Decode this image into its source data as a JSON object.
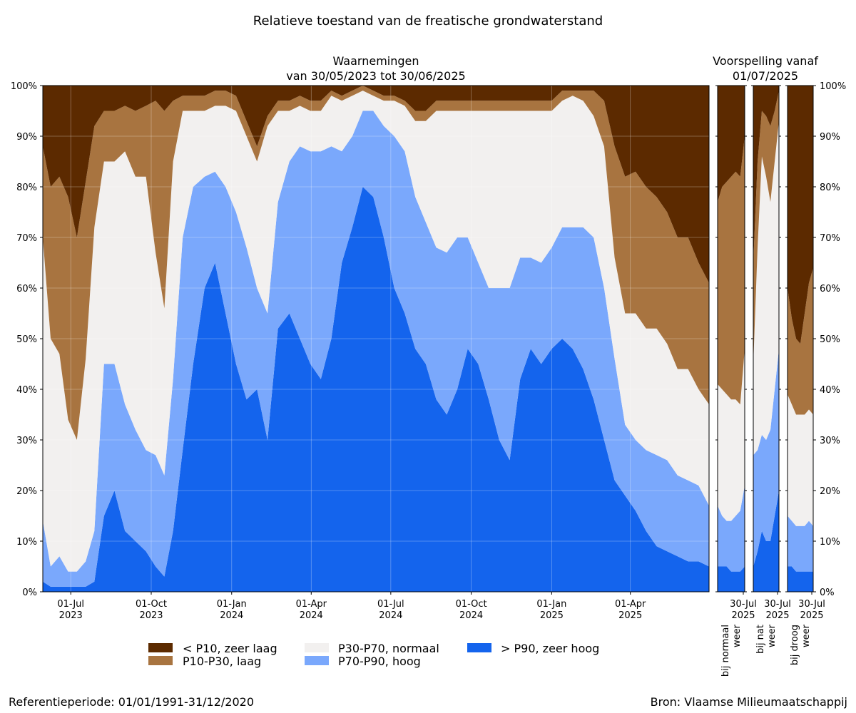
{
  "title": "Relatieve toestand van de freatische grondwaterstand",
  "colors": {
    "zeer_laag": "#5c2a00",
    "laag": "#a87440",
    "normaal": "#f2f0ef",
    "hoog": "#7aa8fc",
    "zeer_hoog": "#1464ed"
  },
  "chart_data": [
    {
      "type": "area",
      "title": "Waarnemingen",
      "subtitle": "van 30/05/2023 tot 30/06/2025",
      "x_range": [
        "2023-05-30",
        "2025-06-30"
      ],
      "xticks": [
        {
          "date": "2023-07-01",
          "line1": "01-Jul",
          "line2": "2023"
        },
        {
          "date": "2023-10-01",
          "line1": "01-Oct",
          "line2": "2023"
        },
        {
          "date": "2024-01-01",
          "line1": "01-Jan",
          "line2": "2024"
        },
        {
          "date": "2024-04-01",
          "line1": "01-Apr",
          "line2": "2024"
        },
        {
          "date": "2024-07-01",
          "line1": "01-Jul",
          "line2": "2024"
        },
        {
          "date": "2024-10-01",
          "line1": "01-Oct",
          "line2": "2024"
        },
        {
          "date": "2025-01-01",
          "line1": "01-Jan",
          "line2": "2025"
        },
        {
          "date": "2025-04-01",
          "line1": "01-Apr",
          "line2": "2025"
        }
      ],
      "yticks": [
        "0%",
        "10%",
        "20%",
        "30%",
        "40%",
        "50%",
        "60%",
        "70%",
        "80%",
        "90%",
        "100%"
      ],
      "ylim": [
        0,
        100
      ],
      "grid": true,
      "stacked": true,
      "x": [
        "2023-05-30",
        "2023-06-08",
        "2023-06-18",
        "2023-06-28",
        "2023-07-08",
        "2023-07-18",
        "2023-07-28",
        "2023-08-08",
        "2023-08-20",
        "2023-09-01",
        "2023-09-13",
        "2023-09-25",
        "2023-10-06",
        "2023-10-16",
        "2023-10-26",
        "2023-11-06",
        "2023-11-18",
        "2023-12-01",
        "2023-12-13",
        "2023-12-25",
        "2024-01-06",
        "2024-01-18",
        "2024-01-30",
        "2024-02-11",
        "2024-02-23",
        "2024-03-07",
        "2024-03-19",
        "2024-03-31",
        "2024-04-12",
        "2024-04-24",
        "2024-05-06",
        "2024-05-18",
        "2024-05-30",
        "2024-06-11",
        "2024-06-23",
        "2024-07-05",
        "2024-07-17",
        "2024-07-29",
        "2024-08-10",
        "2024-08-22",
        "2024-09-03",
        "2024-09-15",
        "2024-09-27",
        "2024-10-09",
        "2024-10-21",
        "2024-11-02",
        "2024-11-14",
        "2024-11-26",
        "2024-12-08",
        "2024-12-20",
        "2025-01-01",
        "2025-01-13",
        "2025-01-25",
        "2025-02-06",
        "2025-02-18",
        "2025-03-02",
        "2025-03-14",
        "2025-03-26",
        "2025-04-07",
        "2025-04-19",
        "2025-05-01",
        "2025-05-13",
        "2025-05-25",
        "2025-06-06",
        "2025-06-18",
        "2025-06-30"
      ],
      "series": [
        {
          "name": "> P90, zeer hoog",
          "color_key": "zeer_hoog",
          "values": [
            2,
            1,
            1,
            1,
            1,
            1,
            2,
            15,
            20,
            12,
            10,
            8,
            5,
            3,
            12,
            28,
            45,
            60,
            65,
            55,
            45,
            38,
            40,
            30,
            52,
            55,
            50,
            45,
            42,
            50,
            65,
            72,
            80,
            78,
            70,
            60,
            55,
            48,
            45,
            38,
            35,
            40,
            48,
            45,
            38,
            30,
            26,
            42,
            48,
            45,
            48,
            50,
            48,
            44,
            38,
            30,
            22,
            19,
            16,
            12,
            9,
            8,
            7,
            6,
            6,
            5
          ]
        },
        {
          "name": "P70-P90, hoog",
          "color_key": "hoog",
          "values": [
            12,
            4,
            6,
            3,
            3,
            5,
            10,
            30,
            25,
            25,
            22,
            20,
            22,
            20,
            30,
            42,
            35,
            22,
            18,
            25,
            30,
            30,
            20,
            25,
            25,
            30,
            38,
            42,
            45,
            38,
            22,
            18,
            15,
            17,
            22,
            30,
            32,
            30,
            28,
            30,
            32,
            30,
            22,
            20,
            22,
            30,
            34,
            24,
            18,
            20,
            20,
            22,
            24,
            28,
            32,
            30,
            24,
            14,
            14,
            16,
            18,
            18,
            16,
            16,
            15,
            12
          ]
        },
        {
          "name": "P30-P70, normaal",
          "color_key": "normaal",
          "values": [
            56,
            45,
            40,
            30,
            26,
            40,
            60,
            40,
            40,
            50,
            50,
            54,
            40,
            33,
            43,
            25,
            15,
            13,
            13,
            16,
            20,
            22,
            25,
            37,
            18,
            10,
            8,
            8,
            8,
            10,
            10,
            8,
            4,
            3,
            5,
            7,
            9,
            15,
            20,
            27,
            28,
            25,
            25,
            30,
            35,
            35,
            35,
            29,
            29,
            30,
            27,
            25,
            26,
            25,
            24,
            28,
            20,
            22,
            25,
            24,
            25,
            23,
            21,
            22,
            19,
            20
          ]
        },
        {
          "name": "P10-P30, laag",
          "color_key": "laag",
          "values": [
            18,
            30,
            35,
            44,
            40,
            35,
            20,
            10,
            10,
            9,
            13,
            14,
            30,
            39,
            12,
            3,
            3,
            3,
            3,
            3,
            3,
            3,
            3,
            2,
            2,
            2,
            2,
            2,
            2,
            1,
            1,
            1,
            1,
            1,
            1,
            1,
            1,
            2,
            2,
            2,
            2,
            2,
            2,
            2,
            2,
            2,
            2,
            2,
            2,
            2,
            2,
            2,
            1,
            2,
            5,
            9,
            22,
            27,
            28,
            28,
            26,
            26,
            26,
            26,
            25,
            24
          ]
        },
        {
          "name": "< P10, zeer laag",
          "color_key": "zeer_laag",
          "values": [
            12,
            20,
            18,
            22,
            30,
            19,
            8,
            5,
            5,
            4,
            5,
            4,
            3,
            5,
            3,
            2,
            2,
            2,
            1,
            1,
            2,
            7,
            12,
            6,
            3,
            3,
            2,
            3,
            3,
            1,
            2,
            1,
            0,
            1,
            2,
            2,
            3,
            5,
            5,
            3,
            3,
            3,
            3,
            3,
            3,
            3,
            3,
            3,
            3,
            3,
            3,
            1,
            1,
            1,
            1,
            3,
            12,
            18,
            17,
            20,
            22,
            25,
            30,
            30,
            35,
            39
          ]
        }
      ]
    },
    {
      "type": "area",
      "title": "Voorspelling vanaf",
      "subtitle": "01/07/2025",
      "xticks": [
        {
          "date": "2025-07-30",
          "line1": "30-Jul",
          "line2": "2025"
        }
      ],
      "yticks": [
        "0%",
        "10%",
        "20%",
        "30%",
        "40%",
        "50%",
        "60%",
        "70%",
        "80%",
        "90%",
        "100%"
      ],
      "ylim": [
        0,
        100
      ],
      "stacked": true,
      "x": [
        "2025-07-01",
        "2025-07-06",
        "2025-07-11",
        "2025-07-16",
        "2025-07-21",
        "2025-07-26",
        "2025-07-31"
      ],
      "scenarios": [
        {
          "label_line1": "bij normaal",
          "label_line2": "weer",
          "series": [
            {
              "name": "> P90, zeer hoog",
              "color_key": "zeer_hoog",
              "values": [
                5,
                5,
                5,
                4,
                4,
                4,
                5
              ]
            },
            {
              "name": "P70-P90, hoog",
              "color_key": "hoog",
              "values": [
                12,
                10,
                9,
                10,
                11,
                12,
                16
              ]
            },
            {
              "name": "P30-P70, normaal",
              "color_key": "normaal",
              "values": [
                24,
                25,
                25,
                24,
                23,
                21,
                27
              ]
            },
            {
              "name": "P10-P30, laag",
              "color_key": "laag",
              "values": [
                36,
                40,
                42,
                44,
                45,
                45,
                42
              ]
            },
            {
              "name": "< P10, zeer laag",
              "color_key": "zeer_laag",
              "values": [
                23,
                20,
                19,
                18,
                17,
                18,
                10
              ]
            }
          ]
        },
        {
          "label_line1": "bij nat",
          "label_line2": "weer",
          "series": [
            {
              "name": "> P90, zeer hoog",
              "color_key": "zeer_hoog",
              "values": [
                5,
                8,
                12,
                10,
                10,
                15,
                20
              ]
            },
            {
              "name": "P70-P90, hoog",
              "color_key": "hoog",
              "values": [
                22,
                20,
                19,
                20,
                22,
                25,
                28
              ]
            },
            {
              "name": "P30-P70, normaal",
              "color_key": "normaal",
              "values": [
                18,
                40,
                55,
                52,
                45,
                45,
                45
              ]
            },
            {
              "name": "P10-P30, laag",
              "color_key": "laag",
              "values": [
                20,
                17,
                9,
                12,
                15,
                10,
                6
              ]
            },
            {
              "name": "< P10, zeer laag",
              "color_key": "zeer_laag",
              "values": [
                35,
                15,
                5,
                6,
                8,
                5,
                1
              ]
            }
          ]
        },
        {
          "label_line1": "bij droog",
          "label_line2": "weer",
          "series": [
            {
              "name": "> P90, zeer hoog",
              "color_key": "zeer_hoog",
              "values": [
                5,
                5,
                4,
                4,
                4,
                4,
                4
              ]
            },
            {
              "name": "P70-P90, hoog",
              "color_key": "hoog",
              "values": [
                10,
                9,
                9,
                9,
                9,
                10,
                9
              ]
            },
            {
              "name": "P30-P70, normaal",
              "color_key": "normaal",
              "values": [
                24,
                23,
                22,
                22,
                22,
                22,
                22
              ]
            },
            {
              "name": "P10-P30, laag",
              "color_key": "laag",
              "values": [
                21,
                17,
                15,
                14,
                20,
                25,
                29
              ]
            },
            {
              "name": "< P10, zeer laag",
              "color_key": "zeer_laag",
              "values": [
                40,
                46,
                50,
                51,
                45,
                39,
                36
              ]
            }
          ]
        }
      ]
    }
  ],
  "legend": {
    "placement": "bottom",
    "items": [
      {
        "label": "< P10, zeer laag",
        "color_key": "zeer_laag"
      },
      {
        "label": "P10-P30, laag",
        "color_key": "laag"
      },
      {
        "label": "P30-P70, normaal",
        "color_key": "normaal"
      },
      {
        "label": "P70-P90, hoog",
        "color_key": "hoog"
      },
      {
        "label": "> P90, zeer hoog",
        "color_key": "zeer_hoog"
      }
    ]
  },
  "footer": {
    "left": "Referentieperiode: 01/01/1991-31/12/2020",
    "right": "Bron: Vlaamse Milieumaatschappij"
  }
}
